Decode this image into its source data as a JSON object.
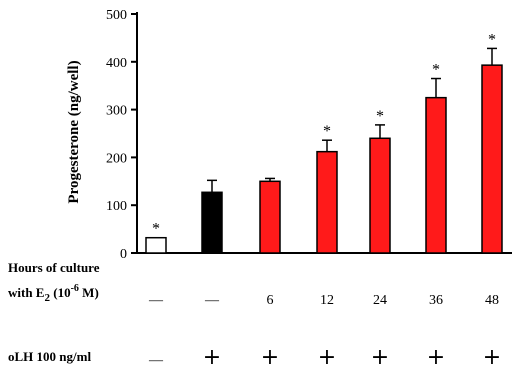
{
  "chart_data": {
    "type": "bar",
    "ylabel": "Progesterone (ng/well)",
    "ylim": [
      0,
      500
    ],
    "yticks": [
      "0",
      "100",
      "200",
      "300",
      "400",
      "500"
    ],
    "bars": [
      {
        "value": 32,
        "error": 0,
        "star": "*",
        "color": "#ffffff",
        "e2": "—",
        "olh": "—"
      },
      {
        "value": 127,
        "error": 25,
        "star": "",
        "color": "#000000",
        "e2": "—",
        "olh": "+"
      },
      {
        "value": 150,
        "error": 6,
        "star": "",
        "color": "#ff1a1a",
        "e2": "6",
        "olh": "+"
      },
      {
        "value": 212,
        "error": 24,
        "star": "*",
        "color": "#ff1a1a",
        "e2": "12",
        "olh": "+"
      },
      {
        "value": 240,
        "error": 28,
        "star": "*",
        "color": "#ff1a1a",
        "e2": "24",
        "olh": "+"
      },
      {
        "value": 325,
        "error": 40,
        "star": "*",
        "color": "#ff1a1a",
        "e2": "36",
        "olh": "+"
      },
      {
        "value": 393,
        "error": 35,
        "star": "*",
        "color": "#ff1a1a",
        "e2": "48",
        "olh": "+"
      }
    ],
    "row1_label_line1": "Hours of culture",
    "row1_label_line2_prefix": "with E",
    "row1_label_line2_sub": "2",
    "row1_label_line2_mid": " (10",
    "row1_label_line2_sup": "-6",
    "row1_label_line2_suffix": " M)",
    "row2_label": "oLH 100 ng/ml"
  }
}
